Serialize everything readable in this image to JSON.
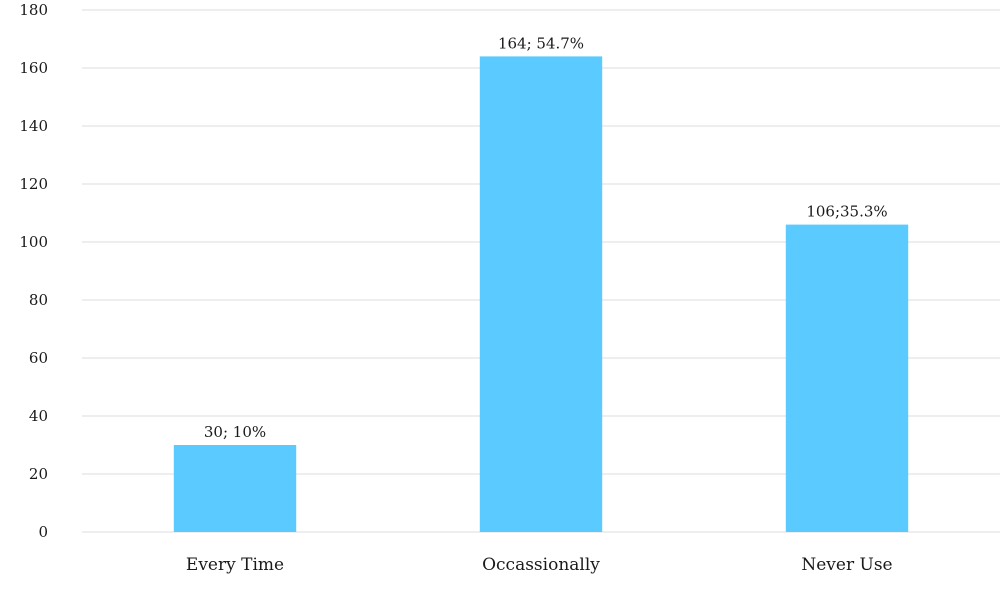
{
  "chart_data": {
    "type": "bar",
    "title": "",
    "xlabel": "",
    "ylabel": "",
    "categories": [
      "Every Time",
      "Occassionally",
      "Never Use"
    ],
    "values": [
      30,
      164,
      106
    ],
    "data_labels": [
      "30; 10%",
      "164; 54.7%",
      "106;35.3%"
    ],
    "ylim": [
      0,
      180
    ],
    "yticks": [
      0,
      20,
      40,
      60,
      80,
      100,
      120,
      140,
      160,
      180
    ],
    "grid": true,
    "bar_color": "#5bcbff",
    "grid_color": "#d9dee2"
  }
}
